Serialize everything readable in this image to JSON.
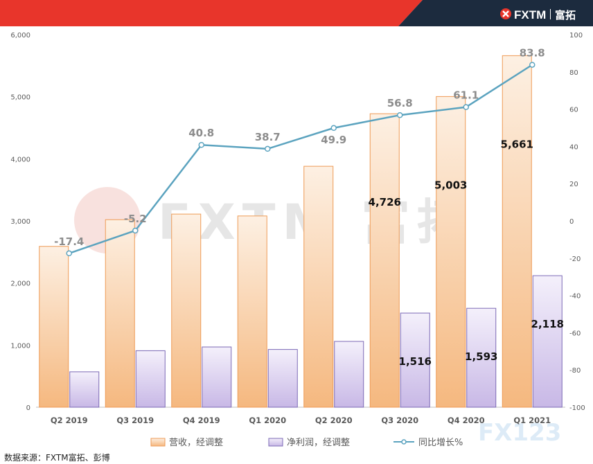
{
  "header": {
    "logo_text": "FXTM",
    "logo_cn": "富拓",
    "accent_red": "#e8352b",
    "accent_navy": "#1c2b3e"
  },
  "watermark": {
    "text": "FXTM 富拓",
    "corner_text": "FX123"
  },
  "source": "数据来源：FXTM富拓、彭博",
  "chart_data": {
    "type": "bar",
    "categories": [
      "Q2 2019",
      "Q3 2019",
      "Q4 2019",
      "Q1 2020",
      "Q2 2020",
      "Q3 2020",
      "Q4 2020",
      "Q1 2021"
    ],
    "series": [
      {
        "name": "营收，经调整",
        "type": "bar",
        "axis": "left",
        "color": "#f5b87f",
        "values": [
          2590,
          3020,
          3110,
          3080,
          3880,
          4726,
          5003,
          5661
        ],
        "labels": [
          "",
          "",
          "",
          "",
          "",
          "4,726",
          "5,003",
          "5,661"
        ]
      },
      {
        "name": "净利润，经调整",
        "type": "bar",
        "axis": "left",
        "color": "#c8b8e6",
        "values": [
          570,
          910,
          970,
          930,
          1060,
          1516,
          1593,
          2118
        ],
        "labels": [
          "",
          "",
          "",
          "",
          "",
          "1,516",
          "1,593",
          "2,118"
        ]
      },
      {
        "name": "同比增长%",
        "type": "line",
        "axis": "right",
        "color": "#5ba3bf",
        "values": [
          -17.4,
          -5.2,
          40.8,
          38.7,
          49.9,
          56.8,
          61.1,
          83.8
        ],
        "labels": [
          "-17.4",
          "-5.2",
          "40.8",
          "38.7",
          "49.9",
          "56.8",
          "61.1",
          "83.8"
        ]
      }
    ],
    "left_axis": {
      "ylim": [
        0,
        6000
      ],
      "ticks": [
        "0",
        "1,000",
        "2,000",
        "3,000",
        "4,000",
        "5,000",
        "6,000"
      ]
    },
    "right_axis": {
      "ylim": [
        -100,
        100
      ],
      "ticks": [
        "-100",
        "-80",
        "-60",
        "-40",
        "-20",
        "0",
        "20",
        "40",
        "60",
        "80",
        "100"
      ]
    },
    "grid": false,
    "legend": "bottom"
  }
}
